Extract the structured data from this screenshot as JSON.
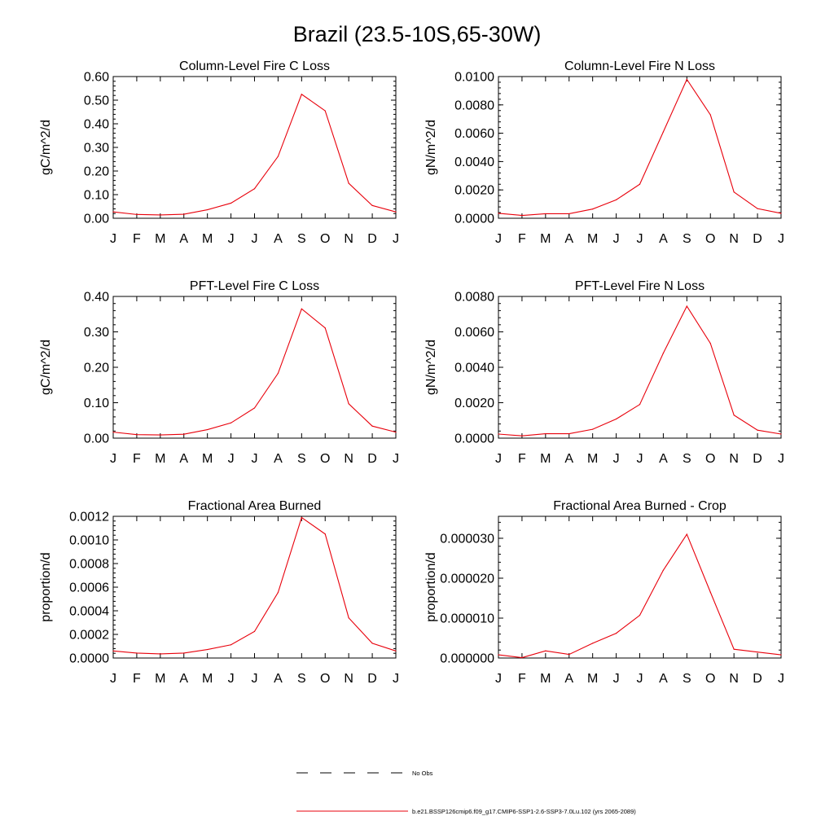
{
  "page_title": "Brazil (23.5-10S,65-30W)",
  "months": [
    "J",
    "F",
    "M",
    "A",
    "M",
    "J",
    "J",
    "A",
    "S",
    "O",
    "N",
    "D",
    "J"
  ],
  "legend": [
    {
      "label": "No Obs",
      "style": "dashed",
      "color": "#000000"
    },
    {
      "label": "b.e21.BSSP126cmip6.f09_g17.CMIP6-SSP1-2.6-SSP3-7.0Lu.102 (yrs 2065-2089)",
      "style": "solid",
      "color": "#e8000b"
    }
  ],
  "series_color": "#e8000b",
  "chart_data": [
    {
      "type": "line",
      "title": "Column-Level Fire C Loss",
      "ylabel": "gC/m^2/d",
      "ylim": [
        0,
        0.6
      ],
      "yticks": [
        0,
        0.1,
        0.2,
        0.3,
        0.4,
        0.5,
        0.6
      ],
      "ytick_labels": [
        "0.00",
        "0.10",
        "0.20",
        "0.30",
        "0.40",
        "0.50",
        "0.60"
      ],
      "series": [
        {
          "values": [
            0.027,
            0.016,
            0.014,
            0.017,
            0.036,
            0.064,
            0.125,
            0.262,
            0.525,
            0.455,
            0.148,
            0.054,
            0.027
          ]
        }
      ]
    },
    {
      "type": "line",
      "title": "Column-Level Fire N Loss",
      "ylabel": "gN/m^2/d",
      "ylim": [
        0,
        0.01
      ],
      "yticks": [
        0,
        0.002,
        0.004,
        0.006,
        0.008,
        0.01
      ],
      "ytick_labels": [
        "0.0000",
        "0.0020",
        "0.0040",
        "0.0060",
        "0.0080",
        "0.0100"
      ],
      "series": [
        {
          "values": [
            0.00035,
            0.0002,
            0.00032,
            0.00032,
            0.00065,
            0.0013,
            0.0024,
            0.0061,
            0.0098,
            0.0073,
            0.00185,
            0.00068,
            0.00035
          ]
        }
      ]
    },
    {
      "type": "line",
      "title": "PFT-Level Fire C Loss",
      "ylabel": "gC/m^2/d",
      "ylim": [
        0,
        0.4
      ],
      "yticks": [
        0,
        0.1,
        0.2,
        0.3,
        0.4
      ],
      "ytick_labels": [
        "0.00",
        "0.10",
        "0.20",
        "0.30",
        "0.40"
      ],
      "series": [
        {
          "values": [
            0.017,
            0.01,
            0.009,
            0.011,
            0.024,
            0.043,
            0.085,
            0.183,
            0.365,
            0.311,
            0.097,
            0.034,
            0.017
          ]
        }
      ]
    },
    {
      "type": "line",
      "title": "PFT-Level Fire N Loss",
      "ylabel": "gN/m^2/d",
      "ylim": [
        0,
        0.008
      ],
      "yticks": [
        0,
        0.002,
        0.004,
        0.006,
        0.008
      ],
      "ytick_labels": [
        "0.0000",
        "0.0020",
        "0.0040",
        "0.0060",
        "0.0080"
      ],
      "series": [
        {
          "values": [
            0.00023,
            0.00013,
            0.00025,
            0.00025,
            0.0005,
            0.00108,
            0.0019,
            0.0048,
            0.00745,
            0.00535,
            0.0013,
            0.00045,
            0.00023
          ]
        }
      ]
    },
    {
      "type": "line",
      "title": "Fractional Area Burned",
      "ylabel": "proportion/d",
      "ylim": [
        0,
        0.0012
      ],
      "yticks": [
        0,
        0.0002,
        0.0004,
        0.0006,
        0.0008,
        0.001,
        0.0012
      ],
      "ytick_labels": [
        "0.0000",
        "0.0002",
        "0.0004",
        "0.0006",
        "0.0008",
        "0.0010",
        "0.0012"
      ],
      "series": [
        {
          "values": [
            6e-05,
            4.2e-05,
            3.5e-05,
            4.2e-05,
            7.2e-05,
            0.000112,
            0.000225,
            0.000555,
            0.00119,
            0.00105,
            0.00034,
            0.000125,
            6e-05
          ]
        }
      ]
    },
    {
      "type": "line",
      "title": "Fractional Area Burned - Crop",
      "ylabel": "proportion/d",
      "ylim": [
        0,
        3.55e-05
      ],
      "yticks": [
        0,
        1e-05,
        2e-05,
        3e-05
      ],
      "ytick_labels": [
        "0.000000",
        "0.000010",
        "0.000020",
        "0.000030"
      ],
      "series": [
        {
          "values": [
            8e-07,
            1e-07,
            1.8e-06,
            9e-07,
            3.7e-06,
            6.2e-06,
            1.07e-05,
            2.2e-05,
            3.1e-05,
            1.65e-05,
            2.2e-06,
            1.5e-06,
            8e-07
          ]
        }
      ]
    }
  ]
}
